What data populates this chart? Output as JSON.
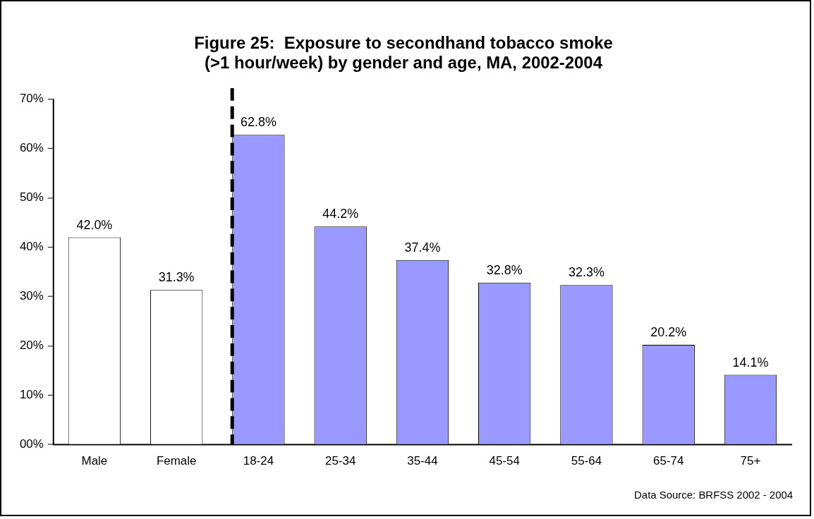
{
  "chart_data": {
    "type": "bar",
    "title": "Figure 25:  Exposure to secondhand tobacco smoke\n(>1 hour/week) by gender and age, MA, 2002-2004",
    "categories": [
      "Male",
      "Female",
      "18-24",
      "25-34",
      "35-44",
      "45-54",
      "55-64",
      "65-74",
      "75+"
    ],
    "values": [
      42.0,
      31.3,
      62.8,
      44.2,
      37.4,
      32.8,
      32.3,
      20.2,
      14.1
    ],
    "value_labels": [
      "42.0%",
      "31.3%",
      "62.8%",
      "44.2%",
      "37.4%",
      "32.8%",
      "32.3%",
      "20.2%",
      "14.1%"
    ],
    "colors": [
      "#ffffff",
      "#ffffff",
      "#9999ff",
      "#9999ff",
      "#9999ff",
      "#9999ff",
      "#9999ff",
      "#9999ff",
      "#9999ff"
    ],
    "ylim": [
      0,
      70
    ],
    "yticks": [
      {
        "value": 0,
        "label": "00%"
      },
      {
        "value": 10,
        "label": "10%"
      },
      {
        "value": 20,
        "label": "20%"
      },
      {
        "value": 30,
        "label": "30%"
      },
      {
        "value": 40,
        "label": "40%"
      },
      {
        "value": 50,
        "label": "50%"
      },
      {
        "value": 60,
        "label": "60%"
      },
      {
        "value": 70,
        "label": "70%"
      }
    ],
    "ref_lines": [
      {
        "axis": "x",
        "value": "18-24",
        "color": "#000000",
        "line_style": "dashed"
      }
    ],
    "annotations": [
      "Data Source: BRFSS 2002 - 2004"
    ],
    "grid": false,
    "legend": false
  }
}
